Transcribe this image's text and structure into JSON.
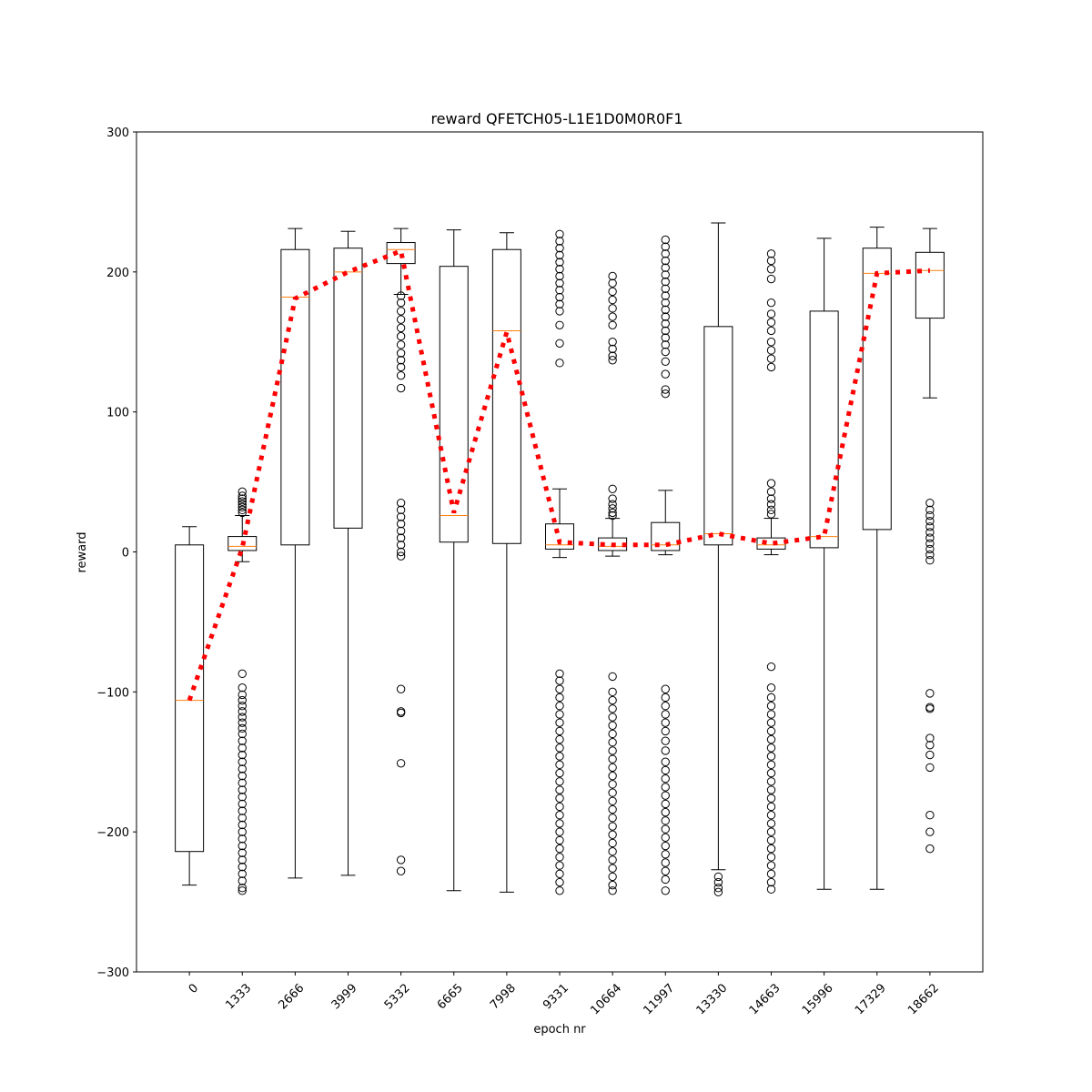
{
  "chart_data": {
    "type": "box",
    "title": "reward QFETCH05-L1E1D0M0R0F1",
    "xlabel": "epoch nr",
    "ylabel": "reward",
    "ylim": [
      -300,
      300
    ],
    "yticks": [
      -300,
      -200,
      -100,
      0,
      100,
      200,
      300
    ],
    "categories": [
      "0",
      "1333",
      "2666",
      "3999",
      "5332",
      "6665",
      "7998",
      "9331",
      "10664",
      "11997",
      "13330",
      "14663",
      "15996",
      "17329",
      "18662"
    ],
    "grid": false,
    "colors": {
      "box": "#000000",
      "median": "#ff7f0e",
      "mean_line": "#ff0000",
      "flier": "#000000"
    },
    "boxes": [
      {
        "q1": -214,
        "median": -106,
        "q3": 5,
        "whisker_low": -238,
        "whisker_high": 18,
        "fliers": []
      },
      {
        "q1": 1,
        "median": 4,
        "q3": 11,
        "whisker_low": -7,
        "whisker_high": 26,
        "fliers": [
          28,
          30,
          32,
          34,
          36,
          38,
          40,
          43,
          -87,
          -97,
          -102,
          -106,
          -110,
          -114,
          -118,
          -122,
          -126,
          -130,
          -135,
          -140,
          -145,
          -150,
          -155,
          -160,
          -165,
          -170,
          -175,
          -180,
          -185,
          -190,
          -195,
          -200,
          -205,
          -210,
          -215,
          -220,
          -225,
          -230,
          -235,
          -240,
          -242
        ]
      },
      {
        "q1": 5,
        "median": 182,
        "q3": 216,
        "whisker_low": -233,
        "whisker_high": 231,
        "fliers": []
      },
      {
        "q1": 17,
        "median": 200,
        "q3": 217,
        "whisker_low": -231,
        "whisker_high": 229,
        "fliers": []
      },
      {
        "q1": 206,
        "median": 216,
        "q3": 221,
        "whisker_low": 184,
        "whisker_high": 231,
        "fliers": [
          183,
          178,
          172,
          166,
          160,
          154,
          148,
          142,
          137,
          132,
          126,
          117,
          35,
          30,
          25,
          20,
          15,
          10,
          5,
          0,
          -3,
          -98,
          -114,
          -115,
          -151,
          -220,
          -228
        ]
      },
      {
        "q1": 7,
        "median": 26,
        "q3": 204,
        "whisker_low": -242,
        "whisker_high": 230,
        "fliers": []
      },
      {
        "q1": 6,
        "median": 158,
        "q3": 216,
        "whisker_low": -243,
        "whisker_high": 228,
        "fliers": []
      },
      {
        "q1": 2,
        "median": 5,
        "q3": 20,
        "whisker_low": -4,
        "whisker_high": 45,
        "fliers": [
          227,
          222,
          217,
          212,
          207,
          202,
          197,
          192,
          187,
          182,
          177,
          172,
          162,
          149,
          135,
          -87,
          -92,
          -98,
          -104,
          -110,
          -116,
          -122,
          -128,
          -134,
          -140,
          -146,
          -152,
          -158,
          -164,
          -170,
          -176,
          -182,
          -188,
          -194,
          -200,
          -206,
          -212,
          -218,
          -224,
          -230,
          -236,
          -242
        ]
      },
      {
        "q1": 1,
        "median": 4,
        "q3": 10,
        "whisker_low": -3,
        "whisker_high": 24,
        "fliers": [
          197,
          192,
          186,
          180,
          174,
          168,
          162,
          150,
          145,
          140,
          137,
          45,
          38,
          34,
          31,
          28,
          26,
          -89,
          -100,
          -106,
          -112,
          -118,
          -124,
          -130,
          -136,
          -142,
          -148,
          -154,
          -160,
          -166,
          -172,
          -178,
          -184,
          -190,
          -196,
          -202,
          -208,
          -214,
          -220,
          -226,
          -232,
          -238,
          -242
        ]
      },
      {
        "q1": 1,
        "median": 5,
        "q3": 21,
        "whisker_low": -2,
        "whisker_high": 44,
        "fliers": [
          223,
          218,
          213,
          208,
          203,
          198,
          193,
          188,
          183,
          178,
          173,
          168,
          163,
          158,
          153,
          148,
          143,
          136,
          127,
          116,
          113,
          -98,
          -104,
          -110,
          -116,
          -122,
          -128,
          -135,
          -142,
          -150,
          -156,
          -162,
          -168,
          -174,
          -180,
          -186,
          -192,
          -198,
          -204,
          -210,
          -216,
          -222,
          -228,
          -234,
          -242
        ]
      },
      {
        "q1": 5,
        "median": 13,
        "q3": 161,
        "whisker_low": -227,
        "whisker_high": 235,
        "fliers": [
          -232,
          -236,
          -240,
          -243
        ]
      },
      {
        "q1": 2,
        "median": 5,
        "q3": 10,
        "whisker_low": -2,
        "whisker_high": 24,
        "fliers": [
          213,
          208,
          202,
          195,
          178,
          170,
          164,
          158,
          150,
          144,
          138,
          132,
          49,
          43,
          38,
          34,
          30,
          27,
          -82,
          -97,
          -104,
          -110,
          -116,
          -122,
          -128,
          -134,
          -140,
          -146,
          -152,
          -158,
          -164,
          -170,
          -176,
          -182,
          -188,
          -194,
          -200,
          -206,
          -212,
          -218,
          -224,
          -230,
          -236,
          -241
        ]
      },
      {
        "q1": 3,
        "median": 11,
        "q3": 172,
        "whisker_low": -241,
        "whisker_high": 224,
        "fliers": []
      },
      {
        "q1": 16,
        "median": 199,
        "q3": 217,
        "whisker_low": -241,
        "whisker_high": 232,
        "fliers": []
      },
      {
        "q1": 167,
        "median": 201,
        "q3": 214,
        "whisker_low": 110,
        "whisker_high": 231,
        "fliers": [
          35,
          30,
          26,
          22,
          18,
          14,
          10,
          6,
          2,
          -2,
          -6,
          -101,
          -111,
          -112,
          -133,
          -138,
          -145,
          -154,
          -188,
          -200,
          -212
        ]
      }
    ],
    "mean_line": [
      -106,
      3,
      181,
      200,
      215,
      28,
      157,
      7,
      5,
      5,
      13,
      6,
      11,
      199,
      201
    ]
  }
}
